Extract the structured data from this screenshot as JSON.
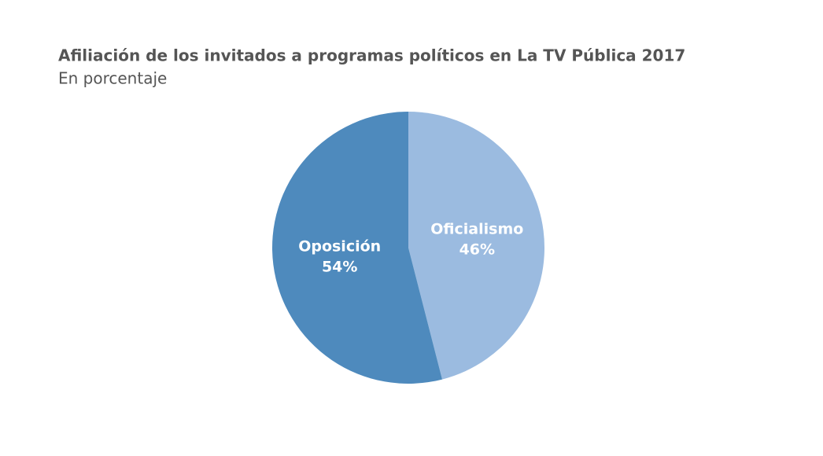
{
  "chart_data": {
    "type": "pie",
    "title": "Afiliación de los invitados a programas políticos en La TV Pública 2017",
    "subtitle": "En porcentaje",
    "categories": [
      "Oficialismo",
      "Oposición"
    ],
    "values": [
      46,
      54
    ],
    "value_labels": [
      "46%",
      "54%"
    ],
    "colors": [
      "#9bbbe0",
      "#4e8abd"
    ]
  }
}
